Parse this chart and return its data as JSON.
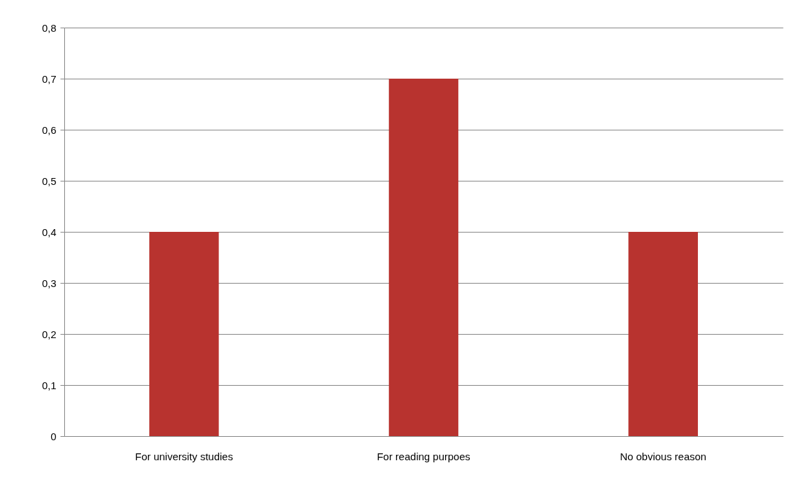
{
  "chart_data": {
    "type": "bar",
    "categories": [
      "For university studies",
      "For reading purpoes",
      "No obvious reason"
    ],
    "values": [
      0.4,
      0.7,
      0.4
    ],
    "color": "#b8332f",
    "ylim": [
      0,
      0.8
    ],
    "yticks": [
      0,
      {
        "value": 0.1,
        "label": "0,1"
      },
      {
        "value": 0.2,
        "label": "0,2"
      },
      {
        "value": 0.3,
        "label": "0,3"
      },
      {
        "value": 0.4,
        "label": "0,4"
      },
      {
        "value": 0.5,
        "label": "0,5"
      },
      {
        "value": 0.6,
        "label": "0,6"
      },
      {
        "value": 0.7,
        "label": "0,7"
      },
      {
        "value": 0.8,
        "label": "0,8"
      }
    ],
    "grid": "y"
  }
}
